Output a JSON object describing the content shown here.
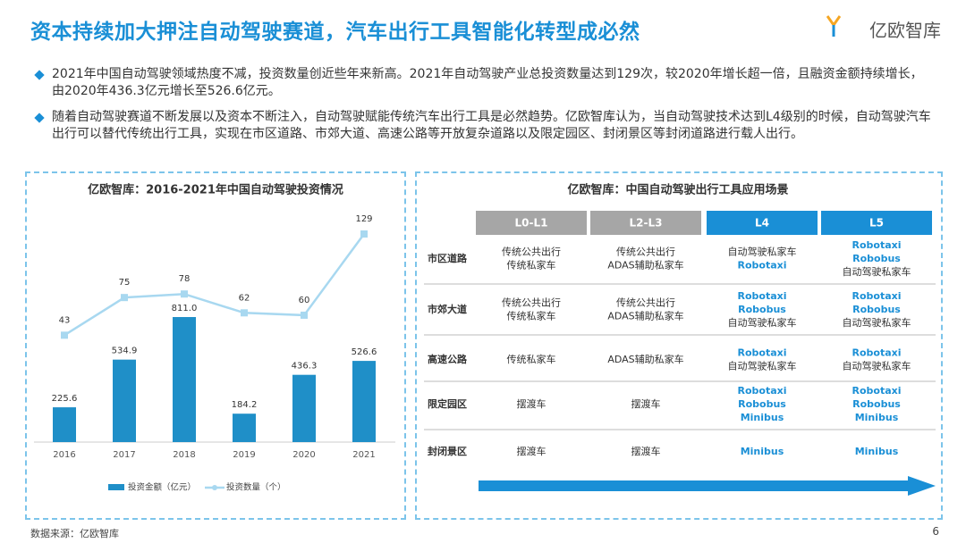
{
  "header": {
    "title": "资本持续加大押注自动驾驶赛道，汽车出行工具智能化转型成必然",
    "logo": "亿欧智库"
  },
  "bullets": [
    "2021年中国自动驾驶领域热度不减，投资数量创近些年来新高。2021年自动驾驶产业总投资数量达到129次，较2020年增长超一倍，且融资金额持续增长，由2020年436.3亿元增长至526.6亿元。",
    "随着自动驾驶赛道不断发展以及资本不断注入，自动驾驶赋能传统汽车出行工具是必然趋势。亿欧智库认为，当自动驾驶技术达到L4级别的时候，自动驾驶汽车出行可以替代传统出行工具，实现在市区道路、市郊大道、高速公路等开放复杂道路以及限定园区、封闭景区等封闭道路进行载人出行。"
  ],
  "chart_data": {
    "type": "bar_line",
    "title": "亿欧智库：2016-2021年中国自动驾驶投资情况",
    "categories": [
      "2016",
      "2017",
      "2018",
      "2019",
      "2020",
      "2021"
    ],
    "series": [
      {
        "name": "投资金额（亿元）",
        "type": "bar",
        "color": "#1f8fc8",
        "values": [
          225.6,
          534.9,
          811.0,
          184.2,
          436.3,
          526.6
        ],
        "value_labels": [
          "225.6",
          "534.9",
          "811.0",
          "184.2",
          "436.3",
          "526.6"
        ]
      },
      {
        "name": "投资数量（个）",
        "type": "line",
        "axis": "y2",
        "color": "#a8d8f0",
        "values": [
          43,
          75,
          78,
          62,
          60,
          129
        ]
      }
    ]
  },
  "table": {
    "title": "亿欧智库：中国自动驾驶出行工具应用场景",
    "columns": [
      "L0-L1",
      "L2-L3",
      "L4",
      "L5"
    ],
    "rows": [
      {
        "label": "市区道路",
        "cells": [
          [
            "传统公共出行",
            "传统私家车"
          ],
          [
            "传统公共出行",
            "ADAS辅助私家车"
          ],
          [
            "自动驾驶私家车",
            "Robotaxi"
          ],
          [
            "Robotaxi",
            "Robobus",
            "自动驾驶私家车"
          ]
        ]
      },
      {
        "label": "市郊大道",
        "cells": [
          [
            "传统公共出行",
            "传统私家车"
          ],
          [
            "传统公共出行",
            "ADAS辅助私家车"
          ],
          [
            "Robotaxi",
            "Robobus",
            "自动驾驶私家车"
          ],
          [
            "Robotaxi",
            "Robobus",
            "自动驾驶私家车"
          ]
        ]
      },
      {
        "label": "高速公路",
        "cells": [
          [
            "传统私家车"
          ],
          [
            "ADAS辅助私家车"
          ],
          [
            "Robotaxi",
            "自动驾驶私家车"
          ],
          [
            "Robotaxi",
            "自动驾驶私家车"
          ]
        ]
      },
      {
        "label": "限定园区",
        "cells": [
          [
            "摆渡车"
          ],
          [
            "摆渡车"
          ],
          [
            "Robotaxi",
            "Robobus",
            "Minibus"
          ],
          [
            "Robotaxi",
            "Robobus",
            "Minibus"
          ]
        ]
      },
      {
        "label": "封闭景区",
        "cells": [
          [
            "摆渡车"
          ],
          [
            "摆渡车"
          ],
          [
            "Minibus"
          ],
          [
            "Minibus"
          ]
        ]
      }
    ]
  },
  "footer": {
    "source": "数据来源：亿欧智库",
    "page": "6"
  }
}
